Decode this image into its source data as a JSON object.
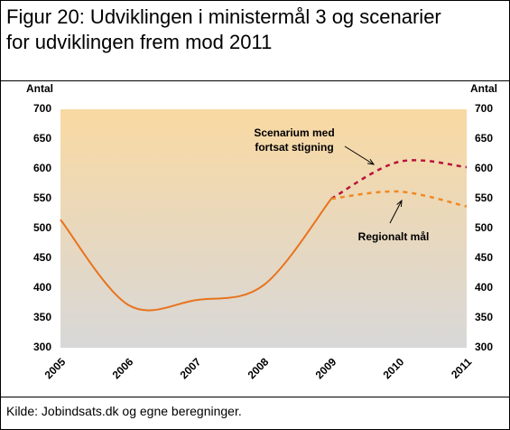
{
  "title_lines": [
    "Figur 20: Udviklingen i ministermål 3 og scenarier",
    "for udviklingen frem mod 2011"
  ],
  "source": "Kilde: Jobindsats.dk og egne beregninger.",
  "chart_data": {
    "type": "line",
    "ylabel": "Antal",
    "y2label": "Antal",
    "x": [
      2005,
      2006,
      2007,
      2008,
      2009,
      2010,
      2011
    ],
    "xlim": [
      2005,
      2011
    ],
    "xticks": [
      2005,
      2006,
      2007,
      2008,
      2009,
      2010,
      2011
    ],
    "ylim": [
      300,
      700
    ],
    "yticks": [
      300,
      350,
      400,
      450,
      500,
      550,
      600,
      650,
      700
    ],
    "y2lim": [
      300,
      700
    ],
    "y2ticks": [
      300,
      350,
      400,
      450,
      500,
      550,
      600,
      650,
      700
    ],
    "series": [
      {
        "color": "#e8731e",
        "dashed": false,
        "values": [
          515,
          372,
          380,
          405,
          550,
          null,
          null
        ]
      },
      {
        "color": "#b8123c",
        "dashed": true,
        "values": [
          null,
          null,
          null,
          null,
          550,
          612,
          603
        ]
      },
      {
        "color": "#ef8a24",
        "dashed": true,
        "values": [
          null,
          null,
          null,
          null,
          550,
          562,
          537
        ]
      }
    ],
    "annotations": [
      "Scenarium med",
      "fortsat stigning",
      "Regionalt mål"
    ]
  }
}
